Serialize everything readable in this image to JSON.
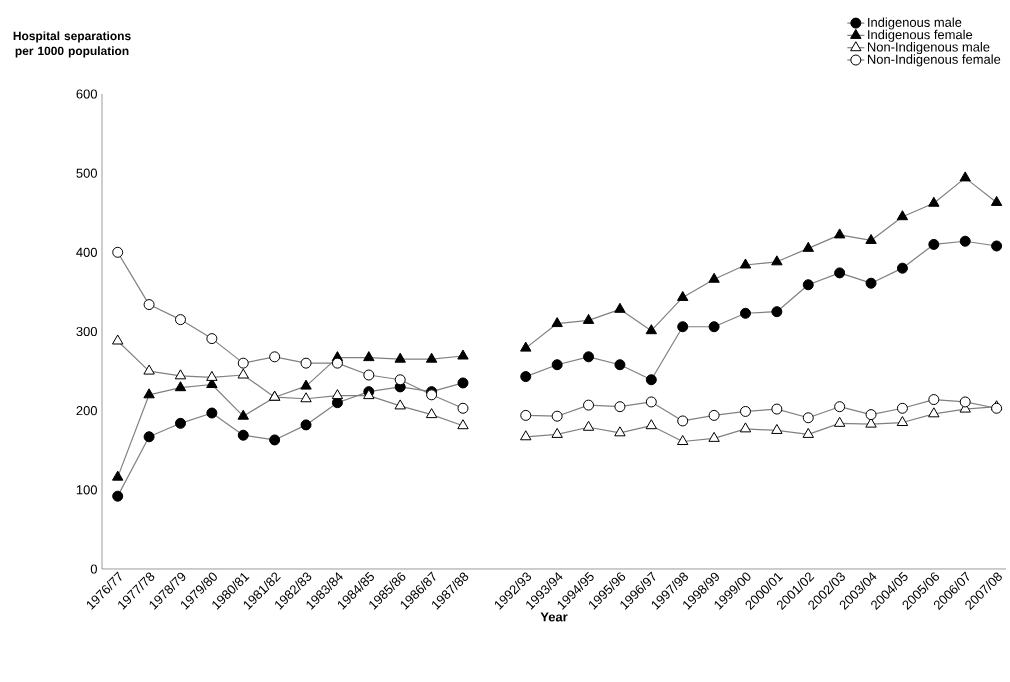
{
  "chart_data": {
    "type": "line",
    "xlabel": "Year",
    "ylabel": "Hospital separations per 1000 population",
    "categories": [
      "1976/77",
      "1977/78",
      "1978/79",
      "1979/80",
      "1980/81",
      "1981/82",
      "1982/83",
      "1983/84",
      "1984/85",
      "1985/86",
      "1986/87",
      "1987/88",
      null,
      "1992/93",
      "1993/94",
      "1994/95",
      "1995/96",
      "1996/97",
      "1997/98",
      "1998/99",
      "1999/00",
      "2000/01",
      "2001/02",
      "2002/03",
      "2003/04",
      "2004/05",
      "2005/06",
      "2006/07",
      "2007/08"
    ],
    "ylim": [
      0,
      600
    ],
    "yticks": [
      0,
      100,
      200,
      300,
      400,
      500,
      600
    ],
    "grid": false,
    "legend": "top right",
    "line_style": "solid",
    "series": [
      {
        "name": "Indigenous male",
        "color": "#000000",
        "marker": "circle",
        "values": [
          92,
          167,
          184,
          197,
          169,
          163,
          182,
          210,
          224,
          230,
          224,
          235,
          null,
          243,
          258,
          268,
          258,
          239,
          306,
          306,
          323,
          325,
          359,
          374,
          361,
          380,
          410,
          414,
          408
        ]
      },
      {
        "name": "Indigenous female",
        "color": "#000000",
        "marker": "triangle",
        "values": [
          116,
          220,
          229,
          233,
          193,
          217,
          231,
          267,
          267,
          265,
          265,
          269,
          null,
          279,
          310,
          314,
          328,
          301,
          343,
          366,
          384,
          388,
          405,
          422,
          415,
          445,
          462,
          494,
          463
        ]
      },
      {
        "name": "Non-Indigenous male",
        "color": "#ffffff",
        "marker": "triangle",
        "values": [
          288,
          250,
          244,
          242,
          245,
          217,
          215,
          219,
          219,
          206,
          195,
          181,
          null,
          167,
          170,
          179,
          172,
          181,
          161,
          165,
          177,
          175,
          170,
          184,
          183,
          185,
          196,
          202,
          205
        ]
      },
      {
        "name": "Non-Indigenous female",
        "color": "#ffffff",
        "marker": "circle",
        "values": [
          400,
          334,
          315,
          291,
          260,
          268,
          260,
          260,
          245,
          239,
          220,
          203,
          null,
          194,
          193,
          207,
          205,
          211,
          187,
          194,
          199,
          202,
          191,
          205,
          195,
          203,
          214,
          211,
          203
        ]
      }
    ]
  }
}
